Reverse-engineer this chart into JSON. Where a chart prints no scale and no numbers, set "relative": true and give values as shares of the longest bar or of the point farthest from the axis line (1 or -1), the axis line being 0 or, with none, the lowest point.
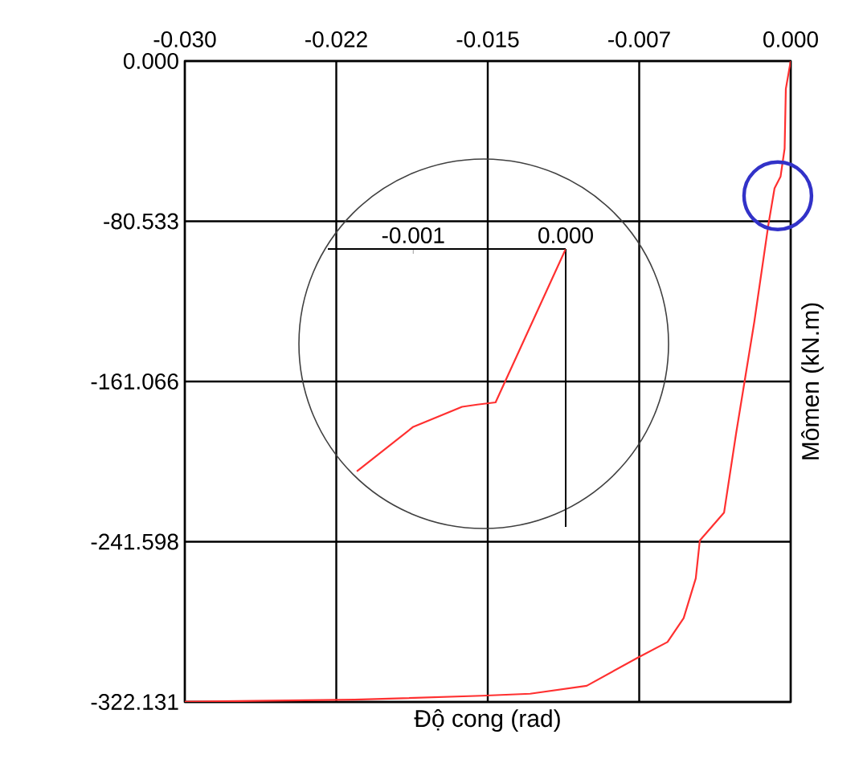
{
  "chart_data": [
    {
      "type": "line",
      "xlabel": "Độ cong (rad)",
      "ylabel": "Mômen (kN.m)",
      "xlim": [
        -0.03,
        0
      ],
      "ylim": [
        -322.131,
        0
      ],
      "xticks": [
        {
          "value": -0.03,
          "label": "-0.030"
        },
        {
          "value": -0.0225,
          "label": "-0.022"
        },
        -0.015,
        {
          "value": -0.0075,
          "label": "-0.007"
        },
        {
          "value": 0,
          "label": "0.000"
        }
      ],
      "yticks": [
        {
          "value": -322.131,
          "label": "-322.131"
        },
        {
          "value": -241.598,
          "label": "-241.598"
        },
        {
          "value": -161.066,
          "label": "-161.066"
        },
        {
          "value": -80.533,
          "label": "-80.533"
        },
        {
          "value": 0,
          "label": "0.000"
        }
      ],
      "grid": true,
      "series": [
        {
          "color": "#ff3030",
          "x": [
            0,
            -0.00024,
            -0.0003,
            -0.0005,
            -0.0008,
            -0.0011,
            -0.0018,
            -0.0027,
            -0.0033,
            -0.0045,
            -0.0047,
            -0.0053,
            -0.0061,
            -0.0076,
            -0.0101,
            -0.0129,
            -0.0153,
            -0.0216,
            -0.0298,
            -0.03
          ],
          "values": [
            0,
            -14,
            -44,
            -58,
            -64,
            -82,
            -131,
            -187,
            -227,
            -241,
            -260,
            -280,
            -292,
            -300,
            -314,
            -318,
            -319,
            -321,
            -322,
            -322
          ]
        }
      ]
    },
    {
      "type": "line",
      "relative": true,
      "xlim": [
        -0.00156,
        0
      ],
      "xticks": [
        -0.001,
        {
          "value": 0,
          "label": "0.000"
        }
      ],
      "series": [
        {
          "color": "#ff3030",
          "x": [
            0,
            -0.00046,
            -0.00058,
            -0.00068,
            -0.001,
            -0.00137
          ],
          "values": [
            0,
            -0.69,
            -0.7,
            -0.71,
            -0.8,
            -1
          ]
        }
      ]
    }
  ]
}
